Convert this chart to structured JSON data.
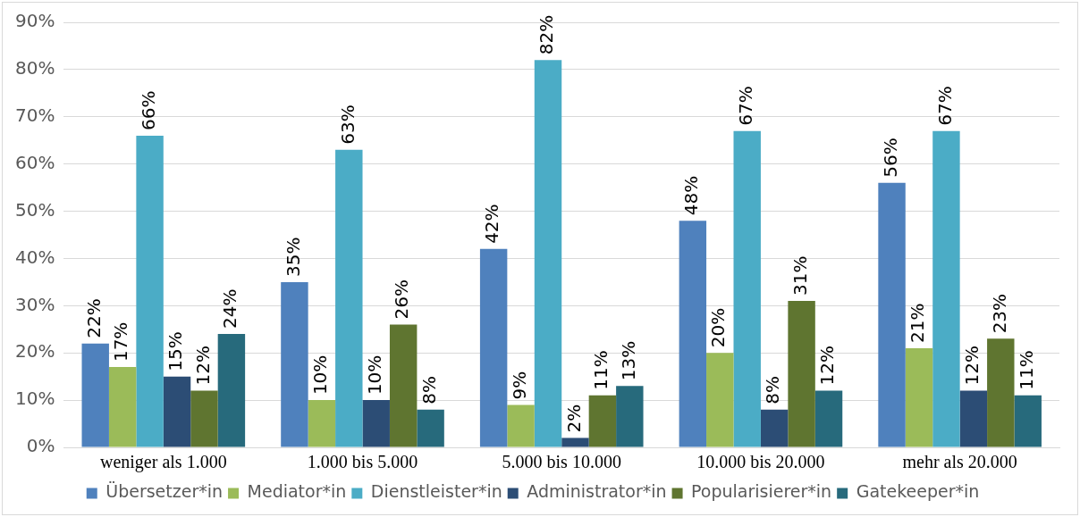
{
  "chart_data": {
    "type": "bar",
    "categories": [
      "weniger als 1.000",
      "1.000 bis 5.000",
      "5.000 bis 10.000",
      "10.000 bis 20.000",
      "mehr als 20.000"
    ],
    "series": [
      {
        "name": "Übersetzer*in",
        "color": "#4f81bd",
        "values": [
          22,
          35,
          42,
          48,
          56
        ],
        "value_labels": [
          "22%",
          "35%",
          "42%",
          "48%",
          "56%"
        ]
      },
      {
        "name": "Mediator*in",
        "color": "#9bbb59",
        "values": [
          17,
          10,
          9,
          20,
          21
        ],
        "value_labels": [
          "17%",
          "10%",
          "9%",
          "20%",
          "21%"
        ]
      },
      {
        "name": "Dienstleister*in",
        "color": "#4bacc6",
        "values": [
          66,
          63,
          82,
          67,
          67
        ],
        "value_labels": [
          "66%",
          "63%",
          "82%",
          "67%",
          "67%"
        ]
      },
      {
        "name": "Administrator*in",
        "color": "#2c4d75",
        "values": [
          15,
          10,
          2,
          8,
          12
        ],
        "value_labels": [
          "15%",
          "10%",
          "2%",
          "8%",
          "12%"
        ]
      },
      {
        "name": "Popularisierer*in",
        "color": "#5f7530",
        "values": [
          12,
          26,
          11,
          31,
          23
        ],
        "value_labels": [
          "12%",
          "26%",
          "11%",
          "31%",
          "23%"
        ]
      },
      {
        "name": "Gatekeeper*in",
        "color": "#276a7c",
        "values": [
          24,
          8,
          13,
          12,
          11
        ],
        "value_labels": [
          "24%",
          "8%",
          "13%",
          "12%",
          "11%"
        ]
      }
    ],
    "ylim": [
      0,
      90
    ],
    "yticks": [
      {
        "value": 0,
        "label": "0%"
      },
      {
        "value": 10,
        "label": "10%"
      },
      {
        "value": 20,
        "label": "20%"
      },
      {
        "value": 30,
        "label": "30%"
      },
      {
        "value": 40,
        "label": "40%"
      },
      {
        "value": 50,
        "label": "50%"
      },
      {
        "value": 60,
        "label": "60%"
      },
      {
        "value": 70,
        "label": "70%"
      },
      {
        "value": 80,
        "label": "80%"
      },
      {
        "value": 90,
        "label": "90%"
      }
    ],
    "grid": "y",
    "legend": "bottom"
  }
}
